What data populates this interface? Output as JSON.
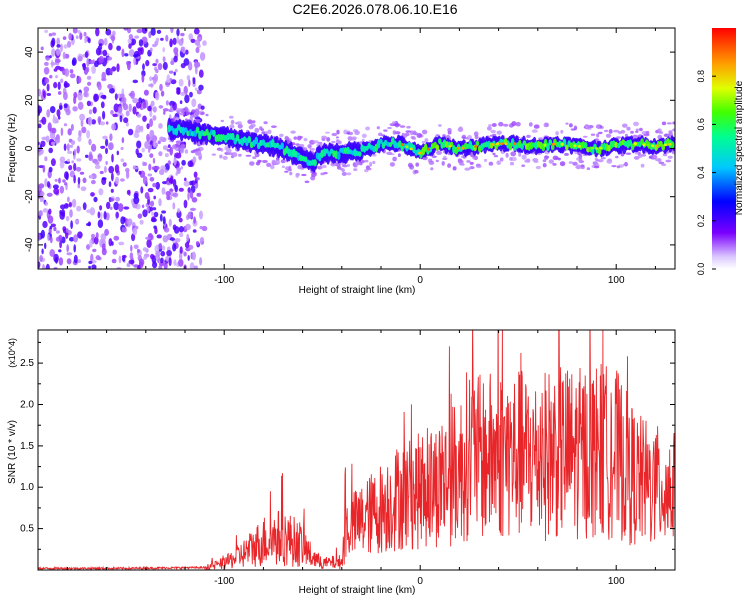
{
  "title": "C2E6.2026.078.06.10.E16",
  "chart_data": [
    {
      "type": "heatmap",
      "title": "C2E6.2026.078.06.10.E16",
      "xlabel": "Height of straight line (km)",
      "ylabel": "Frequency (Hz)",
      "xlim": [
        -195,
        130
      ],
      "ylim": [
        -50,
        50
      ],
      "xticks": [
        -100,
        0,
        100
      ],
      "xtick_labels": [
        "-100",
        "0",
        "100"
      ],
      "yticks": [
        -40,
        -20,
        0,
        20,
        40
      ],
      "ytick_labels": [
        "-40",
        "-20",
        "0",
        "20",
        "40"
      ],
      "colorbar": {
        "label": "Normalized spectral amplitude",
        "range": [
          0,
          1
        ],
        "ticks": [
          0.0,
          0.2,
          0.4,
          0.6,
          0.8
        ],
        "tick_labels": [
          "0.0",
          "0.2",
          "0.4",
          "0.6",
          "0.8"
        ],
        "colormap": "rainbow"
      },
      "ridge": {
        "x": [
          -125,
          -110,
          -100,
          -90,
          -80,
          -70,
          -60,
          -55,
          -50,
          -40,
          -30,
          -20,
          -10,
          0,
          10,
          20,
          30,
          40,
          50,
          60,
          70,
          80,
          90,
          100,
          110,
          120,
          130
        ],
        "freq": [
          8,
          6,
          5,
          3,
          2,
          0,
          -4,
          -6,
          -2,
          -2,
          -1,
          2,
          2,
          -2,
          2,
          0,
          1,
          2,
          2,
          1,
          2,
          1,
          0,
          1,
          2,
          1,
          2
        ]
      },
      "noise_region_x": [
        -195,
        -110
      ]
    },
    {
      "type": "line",
      "xlabel": "Height of straight line (km)",
      "ylabel": "SNR (10 * v/v)",
      "y_multiplier": "(x10^4)",
      "xlim": [
        -195,
        130
      ],
      "ylim": [
        0,
        2.9
      ],
      "xticks": [
        -100,
        0,
        100
      ],
      "xtick_labels": [
        "-100",
        "0",
        "100"
      ],
      "yticks": [
        0.5,
        1.0,
        1.5,
        2.0,
        2.5
      ],
      "ytick_labels": [
        "0.5",
        "1.0",
        "1.5",
        "2.0",
        "2.5"
      ],
      "color": "#e8262a",
      "series": [
        {
          "name": "SNR",
          "x": [
            -195,
            -150,
            -110,
            -100,
            -90,
            -80,
            -70,
            -60,
            -55,
            -50,
            -40,
            -38,
            -30,
            -20,
            -10,
            0,
            10,
            20,
            25,
            30,
            40,
            50,
            60,
            70,
            80,
            90,
            100,
            110,
            120,
            125,
            130
          ],
          "values": [
            0.02,
            0.02,
            0.03,
            0.08,
            0.2,
            0.35,
            0.4,
            0.3,
            0.15,
            0.08,
            0.1,
            0.5,
            0.6,
            0.75,
            0.9,
            0.95,
            1.05,
            1.2,
            1.45,
            1.35,
            1.4,
            1.4,
            1.35,
            1.45,
            1.4,
            1.45,
            1.4,
            1.1,
            1.0,
            1.0,
            0.95
          ]
        }
      ]
    }
  ]
}
